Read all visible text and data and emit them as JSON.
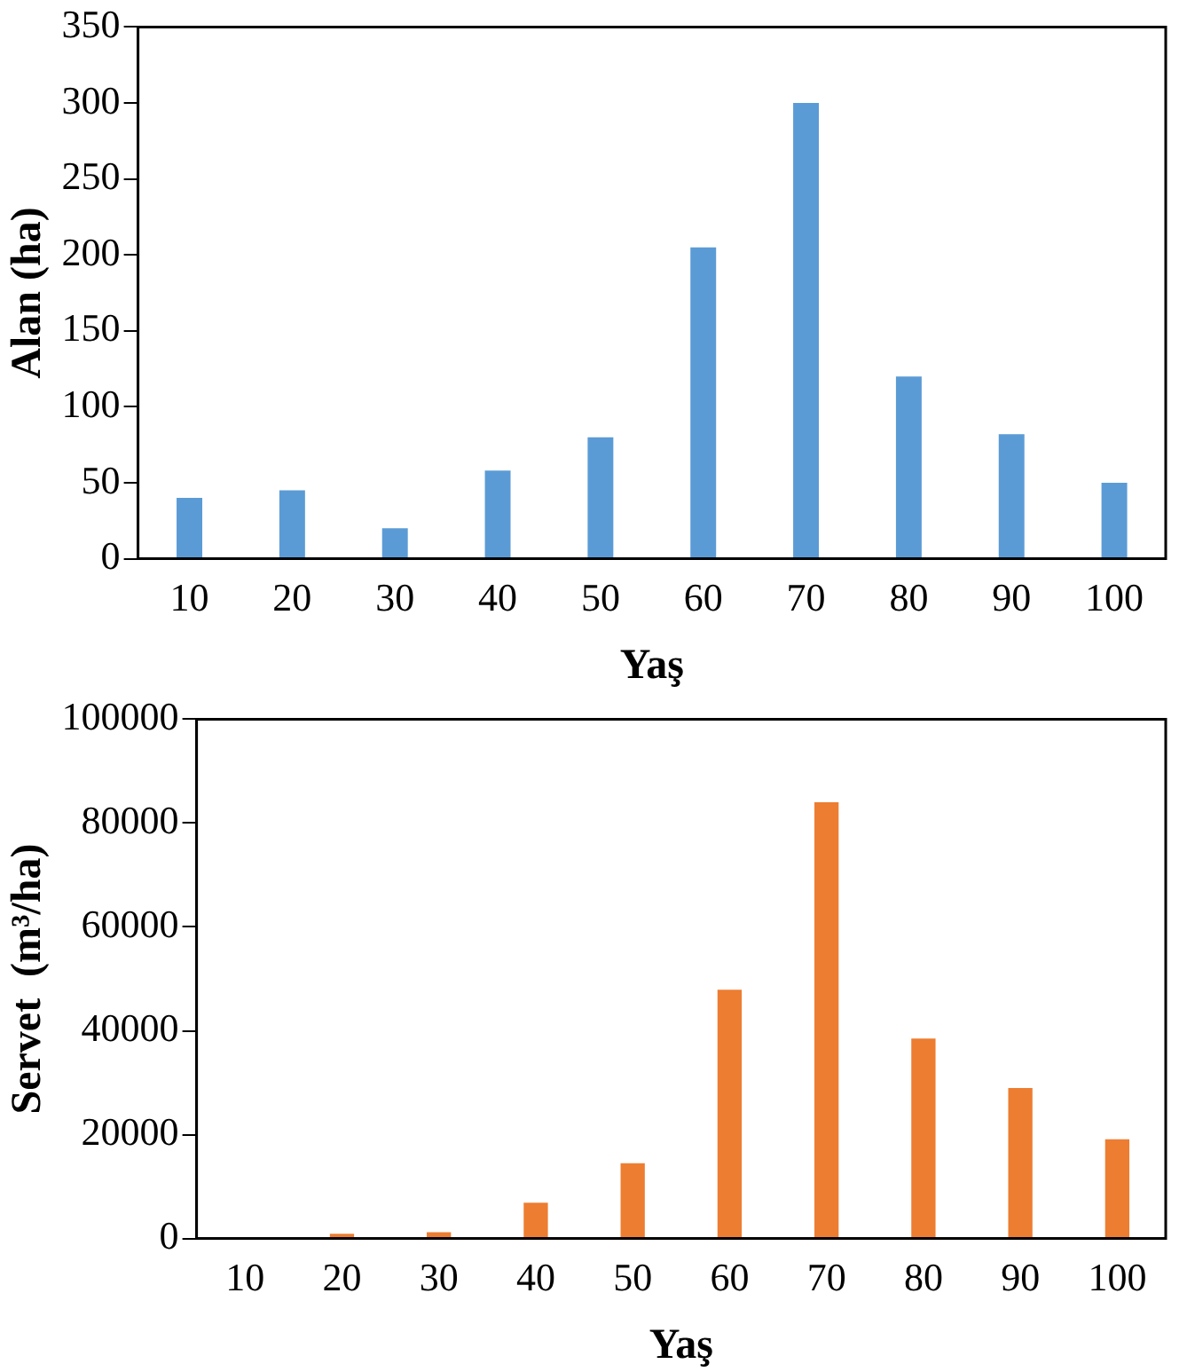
{
  "chart_data": [
    {
      "type": "bar",
      "xlabel": "Yaş",
      "ylabel": "Alan (ha)",
      "categories": [
        "10",
        "20",
        "30",
        "40",
        "50",
        "60",
        "70",
        "80",
        "90",
        "100"
      ],
      "values": [
        40,
        45,
        20,
        58,
        80,
        205,
        300,
        120,
        82,
        50
      ],
      "color": "#5b9bd5",
      "ylim": [
        0,
        350
      ],
      "yticks": [
        0,
        50,
        100,
        150,
        200,
        250,
        300,
        350
      ],
      "grid": false,
      "legend": false
    },
    {
      "type": "bar",
      "xlabel": "Yaş",
      "ylabel": "Servet  (m³/ha)",
      "categories": [
        "10",
        "20",
        "30",
        "40",
        "50",
        "60",
        "70",
        "80",
        "90",
        "100"
      ],
      "values": [
        0,
        900,
        1200,
        6900,
        14500,
        47900,
        84000,
        38500,
        29000,
        19100
      ],
      "color": "#ed7d31",
      "ylim": [
        0,
        100000
      ],
      "yticks": [
        0,
        20000,
        40000,
        60000,
        80000,
        100000
      ],
      "grid": false,
      "legend": false
    }
  ]
}
